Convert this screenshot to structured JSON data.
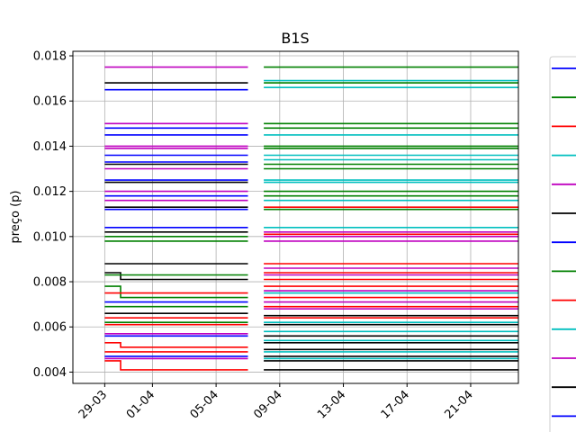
{
  "chart_data": {
    "type": "line",
    "title": "B1S",
    "xlabel": "",
    "ylabel": "preço (p)",
    "grid": true,
    "legend_position": "right, partially cut off (entry labels not visible)",
    "ylim": [
      0.0035,
      0.0182
    ],
    "xlim": [
      "2022-03-27",
      "2022-04-24"
    ],
    "x_ticks": [
      {
        "date": "2022-03-29",
        "label": "29-03"
      },
      {
        "date": "2022-04-01",
        "label": "01-04"
      },
      {
        "date": "2022-04-05",
        "label": "05-04"
      },
      {
        "date": "2022-04-09",
        "label": "09-04"
      },
      {
        "date": "2022-04-13",
        "label": "13-04"
      },
      {
        "date": "2022-04-17",
        "label": "17-04"
      },
      {
        "date": "2022-04-21",
        "label": "21-04"
      }
    ],
    "y_ticks": [
      {
        "value": 0.004,
        "label": "0.004"
      },
      {
        "value": 0.006,
        "label": "0.006"
      },
      {
        "value": 0.008,
        "label": "0.008"
      },
      {
        "value": 0.01,
        "label": "0.010"
      },
      {
        "value": 0.012,
        "label": "0.012"
      },
      {
        "value": 0.014,
        "label": "0.014"
      },
      {
        "value": 0.016,
        "label": "0.016"
      },
      {
        "value": 0.018,
        "label": "0.018"
      }
    ],
    "legend_colors": [
      "#0000ff",
      "#008000",
      "#ff0000",
      "#00bfbf",
      "#bf00bf",
      "#000000",
      "#0000ff",
      "#008000",
      "#ff0000",
      "#00bfbf",
      "#bf00bf",
      "#000000",
      "#0000ff"
    ],
    "series": [
      {
        "color": "#bf00bf",
        "x": [
          "2022-03-29",
          "2022-04-07"
        ],
        "y": [
          0.0175,
          0.0175
        ]
      },
      {
        "color": "#000000",
        "x": [
          "2022-03-29",
          "2022-04-07"
        ],
        "y": [
          0.0168,
          0.0168
        ]
      },
      {
        "color": "#0000ff",
        "x": [
          "2022-03-29",
          "2022-04-07"
        ],
        "y": [
          0.0165,
          0.0165
        ]
      },
      {
        "color": "#bf00bf",
        "x": [
          "2022-03-29",
          "2022-04-07"
        ],
        "y": [
          0.015,
          0.015
        ]
      },
      {
        "color": "#0000ff",
        "x": [
          "2022-03-29",
          "2022-04-07"
        ],
        "y": [
          0.0148,
          0.0148
        ]
      },
      {
        "color": "#0000ff",
        "x": [
          "2022-03-29",
          "2022-04-07"
        ],
        "y": [
          0.0145,
          0.0145
        ]
      },
      {
        "color": "#bf00bf",
        "x": [
          "2022-03-29",
          "2022-04-07"
        ],
        "y": [
          0.014,
          0.014
        ]
      },
      {
        "color": "#bf00bf",
        "x": [
          "2022-03-29",
          "2022-04-07"
        ],
        "y": [
          0.0139,
          0.0139
        ]
      },
      {
        "color": "#0000ff",
        "x": [
          "2022-03-29",
          "2022-04-07"
        ],
        "y": [
          0.0136,
          0.0136
        ]
      },
      {
        "color": "#0000ff",
        "x": [
          "2022-03-29",
          "2022-04-07"
        ],
        "y": [
          0.0133,
          0.0133
        ]
      },
      {
        "color": "#000000",
        "x": [
          "2022-03-29",
          "2022-04-07"
        ],
        "y": [
          0.0132,
          0.0132
        ]
      },
      {
        "color": "#bf00bf",
        "x": [
          "2022-03-29",
          "2022-04-07"
        ],
        "y": [
          0.013,
          0.013
        ]
      },
      {
        "color": "#0000ff",
        "x": [
          "2022-03-29",
          "2022-04-07"
        ],
        "y": [
          0.0125,
          0.0125
        ]
      },
      {
        "color": "#000000",
        "x": [
          "2022-03-29",
          "2022-04-07"
        ],
        "y": [
          0.0124,
          0.0124
        ]
      },
      {
        "color": "#bf00bf",
        "x": [
          "2022-03-29",
          "2022-04-07"
        ],
        "y": [
          0.012,
          0.012
        ]
      },
      {
        "color": "#0000ff",
        "x": [
          "2022-03-29",
          "2022-04-07"
        ],
        "y": [
          0.0118,
          0.0118
        ]
      },
      {
        "color": "#bf00bf",
        "x": [
          "2022-03-29",
          "2022-04-07"
        ],
        "y": [
          0.0116,
          0.0116
        ]
      },
      {
        "color": "#000000",
        "x": [
          "2022-03-29",
          "2022-04-07"
        ],
        "y": [
          0.0113,
          0.0113
        ]
      },
      {
        "color": "#0000ff",
        "x": [
          "2022-03-29",
          "2022-04-07"
        ],
        "y": [
          0.0112,
          0.0112
        ]
      },
      {
        "color": "#0000ff",
        "x": [
          "2022-03-29",
          "2022-04-07"
        ],
        "y": [
          0.0104,
          0.0104
        ]
      },
      {
        "color": "#000000",
        "x": [
          "2022-03-29",
          "2022-04-07"
        ],
        "y": [
          0.0102,
          0.0102
        ]
      },
      {
        "color": "#008000",
        "x": [
          "2022-03-29",
          "2022-04-07"
        ],
        "y": [
          0.01,
          0.01
        ]
      },
      {
        "color": "#008000",
        "x": [
          "2022-03-29",
          "2022-04-07"
        ],
        "y": [
          0.0098,
          0.0098
        ]
      },
      {
        "color": "#000000",
        "x": [
          "2022-03-29",
          "2022-04-07"
        ],
        "y": [
          0.0088,
          0.0088
        ]
      },
      {
        "color": "#000000",
        "x": [
          "2022-03-29",
          "2022-03-30",
          "2022-03-30",
          "2022-04-07"
        ],
        "y": [
          0.0084,
          0.0084,
          0.0081,
          0.0081
        ]
      },
      {
        "color": "#008000",
        "x": [
          "2022-03-29",
          "2022-04-07"
        ],
        "y": [
          0.0083,
          0.0083
        ]
      },
      {
        "color": "#008000",
        "x": [
          "2022-03-29",
          "2022-03-30",
          "2022-03-30",
          "2022-04-07"
        ],
        "y": [
          0.0078,
          0.0078,
          0.0073,
          0.0073
        ]
      },
      {
        "color": "#ff0000",
        "x": [
          "2022-03-29",
          "2022-04-07"
        ],
        "y": [
          0.0075,
          0.0075
        ]
      },
      {
        "color": "#0000ff",
        "x": [
          "2022-03-29",
          "2022-04-07"
        ],
        "y": [
          0.0071,
          0.0071
        ]
      },
      {
        "color": "#008000",
        "x": [
          "2022-03-29",
          "2022-04-07"
        ],
        "y": [
          0.0069,
          0.0069
        ]
      },
      {
        "color": "#000000",
        "x": [
          "2022-03-29",
          "2022-04-07"
        ],
        "y": [
          0.0066,
          0.0066
        ]
      },
      {
        "color": "#ff0000",
        "x": [
          "2022-03-29",
          "2022-04-07"
        ],
        "y": [
          0.0064,
          0.0064
        ]
      },
      {
        "color": "#008000",
        "x": [
          "2022-03-29",
          "2022-04-07"
        ],
        "y": [
          0.0062,
          0.0062
        ]
      },
      {
        "color": "#ff0000",
        "x": [
          "2022-03-29",
          "2022-04-07"
        ],
        "y": [
          0.0061,
          0.0061
        ]
      },
      {
        "color": "#bf00bf",
        "x": [
          "2022-03-29",
          "2022-04-07"
        ],
        "y": [
          0.0057,
          0.0057
        ]
      },
      {
        "color": "#0000ff",
        "x": [
          "2022-03-29",
          "2022-04-07"
        ],
        "y": [
          0.0056,
          0.0056
        ]
      },
      {
        "color": "#ff0000",
        "x": [
          "2022-03-29",
          "2022-03-30",
          "2022-03-30",
          "2022-04-07"
        ],
        "y": [
          0.0053,
          0.0053,
          0.0051,
          0.0051
        ]
      },
      {
        "color": "#ff0000",
        "x": [
          "2022-03-29",
          "2022-04-07"
        ],
        "y": [
          0.0049,
          0.0049
        ]
      },
      {
        "color": "#0000ff",
        "x": [
          "2022-03-29",
          "2022-04-07"
        ],
        "y": [
          0.0047,
          0.0047
        ]
      },
      {
        "color": "#bf00bf",
        "x": [
          "2022-03-29",
          "2022-04-07"
        ],
        "y": [
          0.0046,
          0.0046
        ]
      },
      {
        "color": "#ff0000",
        "x": [
          "2022-03-29",
          "2022-03-30",
          "2022-03-30",
          "2022-04-07"
        ],
        "y": [
          0.0045,
          0.0045,
          0.0041,
          0.0041
        ]
      },
      {
        "color": "#008000",
        "x": [
          "2022-04-08",
          "2022-04-24"
        ],
        "y": [
          0.0175,
          0.0175
        ]
      },
      {
        "color": "#00bfbf",
        "x": [
          "2022-04-08",
          "2022-04-24"
        ],
        "y": [
          0.0169,
          0.0169
        ]
      },
      {
        "color": "#008000",
        "x": [
          "2022-04-08",
          "2022-04-24"
        ],
        "y": [
          0.0168,
          0.0168
        ]
      },
      {
        "color": "#00bfbf",
        "x": [
          "2022-04-08",
          "2022-04-24"
        ],
        "y": [
          0.0166,
          0.0166
        ]
      },
      {
        "color": "#008000",
        "x": [
          "2022-04-08",
          "2022-04-24"
        ],
        "y": [
          0.015,
          0.015
        ]
      },
      {
        "color": "#008000",
        "x": [
          "2022-04-08",
          "2022-04-24"
        ],
        "y": [
          0.0148,
          0.0148
        ]
      },
      {
        "color": "#00bfbf",
        "x": [
          "2022-04-08",
          "2022-04-24"
        ],
        "y": [
          0.0145,
          0.0145
        ]
      },
      {
        "color": "#008000",
        "x": [
          "2022-04-08",
          "2022-04-24"
        ],
        "y": [
          0.014,
          0.014
        ]
      },
      {
        "color": "#008000",
        "x": [
          "2022-04-08",
          "2022-04-24"
        ],
        "y": [
          0.0139,
          0.0139
        ]
      },
      {
        "color": "#00bfbf",
        "x": [
          "2022-04-08",
          "2022-04-24"
        ],
        "y": [
          0.0136,
          0.0136
        ]
      },
      {
        "color": "#00bfbf",
        "x": [
          "2022-04-08",
          "2022-04-24"
        ],
        "y": [
          0.0134,
          0.0134
        ]
      },
      {
        "color": "#008000",
        "x": [
          "2022-04-08",
          "2022-04-24"
        ],
        "y": [
          0.0132,
          0.0132
        ]
      },
      {
        "color": "#008000",
        "x": [
          "2022-04-08",
          "2022-04-24"
        ],
        "y": [
          0.013,
          0.013
        ]
      },
      {
        "color": "#00bfbf",
        "x": [
          "2022-04-08",
          "2022-04-24"
        ],
        "y": [
          0.0125,
          0.0125
        ]
      },
      {
        "color": "#00bfbf",
        "x": [
          "2022-04-08",
          "2022-04-24"
        ],
        "y": [
          0.0124,
          0.0124
        ]
      },
      {
        "color": "#008000",
        "x": [
          "2022-04-08",
          "2022-04-24"
        ],
        "y": [
          0.012,
          0.012
        ]
      },
      {
        "color": "#008000",
        "x": [
          "2022-04-08",
          "2022-04-24"
        ],
        "y": [
          0.0118,
          0.0118
        ]
      },
      {
        "color": "#00bfbf",
        "x": [
          "2022-04-08",
          "2022-04-24"
        ],
        "y": [
          0.0116,
          0.0116
        ]
      },
      {
        "color": "#ff0000",
        "x": [
          "2022-04-08",
          "2022-04-24"
        ],
        "y": [
          0.0113,
          0.0113
        ]
      },
      {
        "color": "#008000",
        "x": [
          "2022-04-08",
          "2022-04-24"
        ],
        "y": [
          0.0112,
          0.0112
        ]
      },
      {
        "color": "#00bfbf",
        "x": [
          "2022-04-08",
          "2022-04-24"
        ],
        "y": [
          0.0104,
          0.0104
        ]
      },
      {
        "color": "#bf00bf",
        "x": [
          "2022-04-08",
          "2022-04-24"
        ],
        "y": [
          0.0102,
          0.0102
        ]
      },
      {
        "color": "#ff0000",
        "x": [
          "2022-04-08",
          "2022-04-24"
        ],
        "y": [
          0.0101,
          0.0101
        ]
      },
      {
        "color": "#bf00bf",
        "x": [
          "2022-04-08",
          "2022-04-24"
        ],
        "y": [
          0.01,
          0.01
        ]
      },
      {
        "color": "#bf00bf",
        "x": [
          "2022-04-08",
          "2022-04-24"
        ],
        "y": [
          0.0098,
          0.0098
        ]
      },
      {
        "color": "#ff0000",
        "x": [
          "2022-04-08",
          "2022-04-24"
        ],
        "y": [
          0.0088,
          0.0088
        ]
      },
      {
        "color": "#bf00bf",
        "x": [
          "2022-04-08",
          "2022-04-24"
        ],
        "y": [
          0.0086,
          0.0086
        ]
      },
      {
        "color": "#ff0000",
        "x": [
          "2022-04-08",
          "2022-04-24"
        ],
        "y": [
          0.0084,
          0.0084
        ]
      },
      {
        "color": "#bf00bf",
        "x": [
          "2022-04-08",
          "2022-04-24"
        ],
        "y": [
          0.0083,
          0.0083
        ]
      },
      {
        "color": "#ff0000",
        "x": [
          "2022-04-08",
          "2022-04-24"
        ],
        "y": [
          0.0081,
          0.0081
        ]
      },
      {
        "color": "#ff0000",
        "x": [
          "2022-04-08",
          "2022-04-24"
        ],
        "y": [
          0.0078,
          0.0078
        ]
      },
      {
        "color": "#bf00bf",
        "x": [
          "2022-04-08",
          "2022-04-24"
        ],
        "y": [
          0.0076,
          0.0076
        ]
      },
      {
        "color": "#00bfbf",
        "x": [
          "2022-04-08",
          "2022-04-24"
        ],
        "y": [
          0.0075,
          0.0075
        ]
      },
      {
        "color": "#ff0000",
        "x": [
          "2022-04-08",
          "2022-04-24"
        ],
        "y": [
          0.0073,
          0.0073
        ]
      },
      {
        "color": "#bf00bf",
        "x": [
          "2022-04-08",
          "2022-04-24"
        ],
        "y": [
          0.0071,
          0.0071
        ]
      },
      {
        "color": "#ff0000",
        "x": [
          "2022-04-08",
          "2022-04-24"
        ],
        "y": [
          0.0069,
          0.0069
        ]
      },
      {
        "color": "#bf00bf",
        "x": [
          "2022-04-08",
          "2022-04-24"
        ],
        "y": [
          0.0068,
          0.0068
        ]
      },
      {
        "color": "#000000",
        "x": [
          "2022-04-08",
          "2022-04-24"
        ],
        "y": [
          0.0065,
          0.0065
        ]
      },
      {
        "color": "#ff0000",
        "x": [
          "2022-04-08",
          "2022-04-24"
        ],
        "y": [
          0.0064,
          0.0064
        ]
      },
      {
        "color": "#00bfbf",
        "x": [
          "2022-04-08",
          "2022-04-24"
        ],
        "y": [
          0.0062,
          0.0062
        ]
      },
      {
        "color": "#000000",
        "x": [
          "2022-04-08",
          "2022-04-24"
        ],
        "y": [
          0.0061,
          0.0061
        ]
      },
      {
        "color": "#00bfbf",
        "x": [
          "2022-04-08",
          "2022-04-24"
        ],
        "y": [
          0.0058,
          0.0058
        ]
      },
      {
        "color": "#000000",
        "x": [
          "2022-04-08",
          "2022-04-24"
        ],
        "y": [
          0.0056,
          0.0056
        ]
      },
      {
        "color": "#00bfbf",
        "x": [
          "2022-04-08",
          "2022-04-24"
        ],
        "y": [
          0.0054,
          0.0054
        ]
      },
      {
        "color": "#000000",
        "x": [
          "2022-04-08",
          "2022-04-24"
        ],
        "y": [
          0.0053,
          0.0053
        ]
      },
      {
        "color": "#000000",
        "x": [
          "2022-04-08",
          "2022-04-24"
        ],
        "y": [
          0.005,
          0.005
        ]
      },
      {
        "color": "#00bfbf",
        "x": [
          "2022-04-08",
          "2022-04-24"
        ],
        "y": [
          0.0049,
          0.0049
        ]
      },
      {
        "color": "#000000",
        "x": [
          "2022-04-08",
          "2022-04-24"
        ],
        "y": [
          0.0047,
          0.0047
        ]
      },
      {
        "color": "#00bfbf",
        "x": [
          "2022-04-08",
          "2022-04-24"
        ],
        "y": [
          0.0046,
          0.0046
        ]
      },
      {
        "color": "#000000",
        "x": [
          "2022-04-08",
          "2022-04-24"
        ],
        "y": [
          0.0045,
          0.0045
        ]
      },
      {
        "color": "#000000",
        "x": [
          "2022-04-08",
          "2022-04-24"
        ],
        "y": [
          0.0041,
          0.0041
        ]
      }
    ]
  }
}
